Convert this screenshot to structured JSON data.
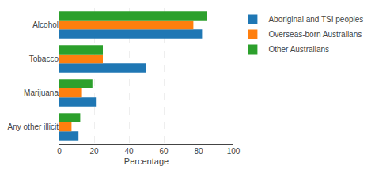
{
  "chart_data": {
    "type": "bar",
    "orientation": "horizontal",
    "categories": [
      "Any other illicit",
      "Marijuana",
      "Tobacco",
      "Alcohol"
    ],
    "series": [
      {
        "name": "Aboriginal and TSI peoples",
        "values": [
          11,
          21,
          50,
          82
        ]
      },
      {
        "name": "Overseas-born Australians",
        "values": [
          7,
          13,
          25,
          77
        ]
      },
      {
        "name": "Other Australians",
        "values": [
          12,
          19,
          25,
          85
        ]
      }
    ],
    "xlabel": "Percentage",
    "xlim": [
      0,
      100
    ],
    "xticks": [
      0,
      20,
      40,
      60,
      80,
      100
    ],
    "grid": true,
    "legend": "right"
  }
}
